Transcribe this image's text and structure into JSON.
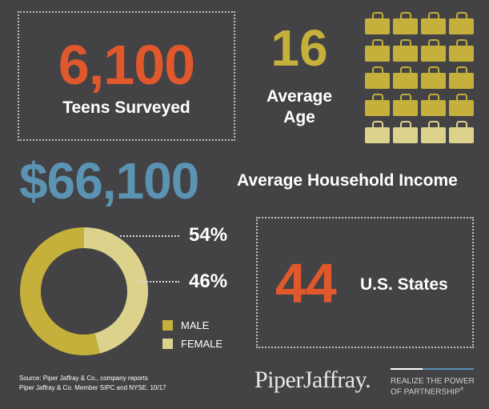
{
  "teens": {
    "number": "6,100",
    "label": "Teens Surveyed"
  },
  "age": {
    "number": "16",
    "label_line1": "Average",
    "label_line2": "Age"
  },
  "income": {
    "number": "$66,100",
    "label": "Average Household Income"
  },
  "gender": {
    "male_pct": "54%",
    "female_pct": "46%",
    "male_label": "MALE",
    "female_label": "FEMALE",
    "male_value": 54,
    "female_value": 46,
    "male_color": "#c4b03a",
    "female_color": "#ddd28c"
  },
  "states": {
    "number": "44",
    "label": "U.S. States"
  },
  "bags": {
    "rows": 5,
    "cols": 4,
    "filled_rows": 4,
    "filled_color": "#c4b03a",
    "light_color": "#ddd28c"
  },
  "footer": {
    "source_line1": "Source: Piper Jaffray & Co., company reports",
    "source_line2": "Piper Jaffray & Co. Member SIPC and NYSE. 10/17",
    "logo": "PiperJaffray.",
    "tagline_line1": "REALIZE THE POWER",
    "tagline_line2": "OF PARTNERSHIP",
    "tagline_mark": "®"
  },
  "colors": {
    "background": "#434345",
    "orange": "#e0582b",
    "blue": "#5b93b3",
    "gold": "#c4b03a"
  }
}
